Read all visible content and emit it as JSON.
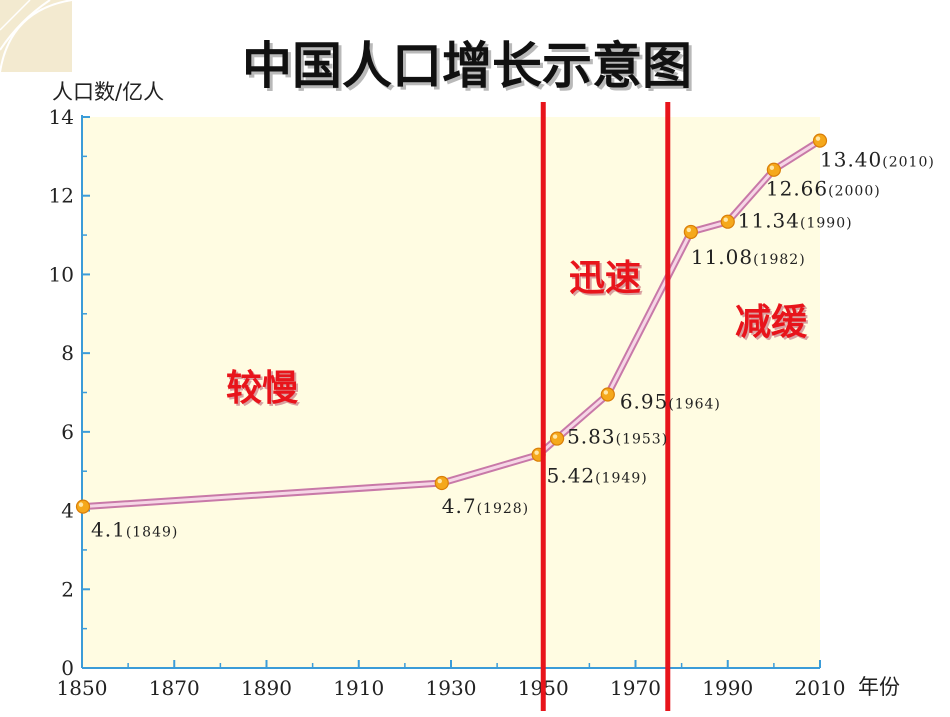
{
  "title": "中国人口增长示意图",
  "chart_data": {
    "type": "line",
    "ylabel": "人口数/亿人",
    "xlabel": "年份",
    "xlim": [
      1850,
      2010
    ],
    "ylim": [
      0,
      14
    ],
    "x_ticks": [
      "1850",
      "1870",
      "1890",
      "1910",
      "1930",
      "1950",
      "1970",
      "1990",
      "2010"
    ],
    "y_ticks": [
      "0",
      "2",
      "4",
      "6",
      "8",
      "10",
      "12",
      "14"
    ],
    "points": [
      {
        "x": 1849,
        "y": 4.1,
        "value_label": "4.1",
        "year_label": "(1849)"
      },
      {
        "x": 1928,
        "y": 4.7,
        "value_label": "4.7",
        "year_label": "(1928)"
      },
      {
        "x": 1949,
        "y": 5.42,
        "value_label": "5.42",
        "year_label": "(1949)"
      },
      {
        "x": 1953,
        "y": 5.83,
        "value_label": "5.83",
        "year_label": "(1953)"
      },
      {
        "x": 1964,
        "y": 6.95,
        "value_label": "6.95",
        "year_label": "(1964)"
      },
      {
        "x": 1982,
        "y": 11.08,
        "value_label": "11.08",
        "year_label": "(1982)"
      },
      {
        "x": 1990,
        "y": 11.34,
        "value_label": "11.34",
        "year_label": "(1990)"
      },
      {
        "x": 2000,
        "y": 12.66,
        "value_label": "12.66",
        "year_label": "(2000)"
      },
      {
        "x": 2010,
        "y": 13.4,
        "value_label": "13.40",
        "year_label": "(2010)"
      }
    ],
    "divider_years": [
      1950,
      1977
    ],
    "phases": [
      {
        "label": "较慢"
      },
      {
        "label": "迅速"
      },
      {
        "label": "减缓"
      }
    ],
    "colors": {
      "plot_background": "#fffce2",
      "line": "#c879a8",
      "line_inner": "#f6d6e6",
      "marker": "#f5a81b",
      "divider": "#e8141b",
      "axis": "#3b9cd8",
      "phase_text": "#e8141b"
    }
  }
}
